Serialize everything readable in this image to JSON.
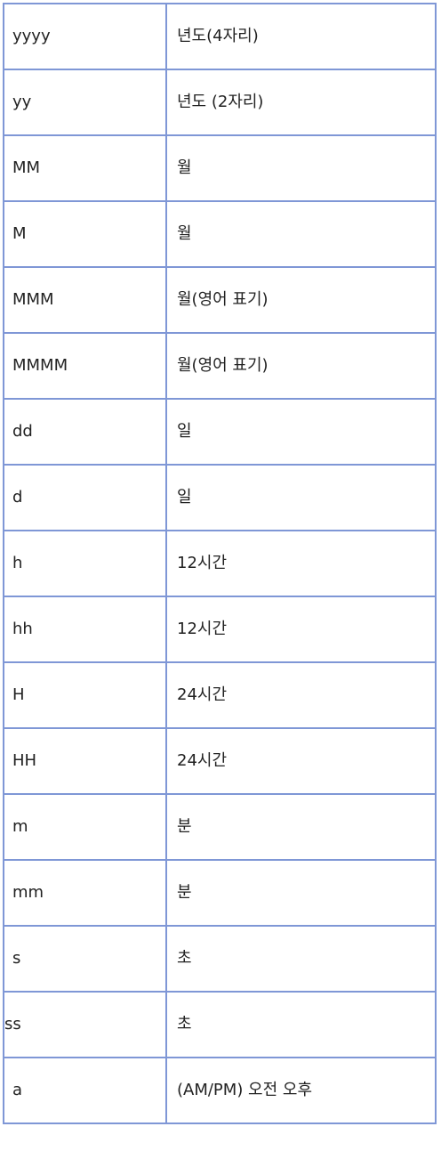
{
  "rows": [
    {
      "pattern": "yyyy",
      "description": "년도(4자리)"
    },
    {
      "pattern": "yy",
      "description": "년도 (2자리)"
    },
    {
      "pattern": "MM",
      "description": "월"
    },
    {
      "pattern": "M",
      "description": "월"
    },
    {
      "pattern": "MMM",
      "description": "월(영어 표기)"
    },
    {
      "pattern": "MMMM",
      "description": "월(영어 표기)"
    },
    {
      "pattern": "dd",
      "description": "일"
    },
    {
      "pattern": "d",
      "description": "일"
    },
    {
      "pattern": "h",
      "description": "12시간"
    },
    {
      "pattern": "hh",
      "description": "12시간"
    },
    {
      "pattern": "H",
      "description": "24시간"
    },
    {
      "pattern": "HH",
      "description": "24시간"
    },
    {
      "pattern": "m",
      "description": "분"
    },
    {
      "pattern": "mm",
      "description": "분"
    },
    {
      "pattern": "s",
      "description": "초"
    },
    {
      "pattern": "ss",
      "description": "초"
    },
    {
      "pattern": "a",
      "description": "(AM/PM) 오전 오후"
    }
  ],
  "colors": {
    "border": "#7f97d6",
    "text": "#222222",
    "background": "#ffffff"
  }
}
